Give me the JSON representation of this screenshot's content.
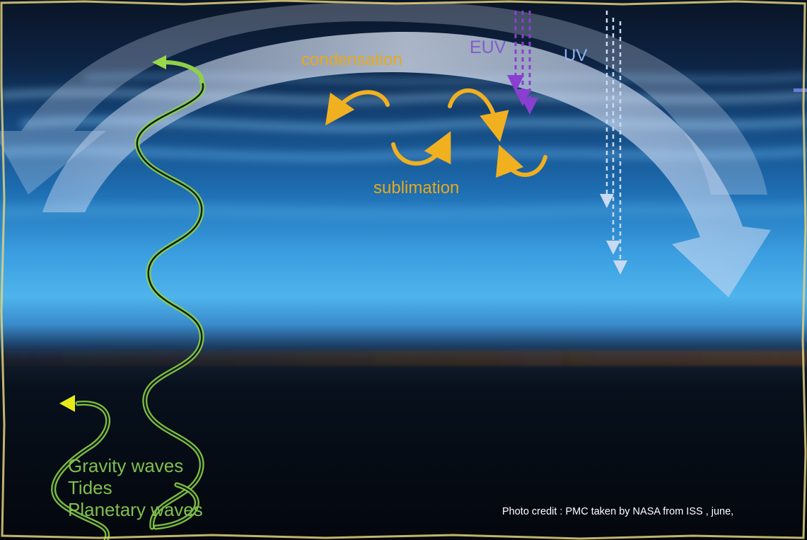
{
  "labels": {
    "condensation": "condensation",
    "sublimation": "sublimation",
    "euv": "EUV",
    "uv": "UV"
  },
  "waves": [
    "Gravity waves",
    "Tides",
    "Planetary waves"
  ],
  "credit": "Photo credit : PMC taken by NASA from ISS , june,",
  "colors": {
    "phase_arrows": "#f0b020",
    "wave_lines": "#8fd04a",
    "euv_rays": "#8a3fd0",
    "uv_rays": "#c8daf2",
    "circulation_arrow": "#c9d7f0",
    "sky_top": "#0b1b33",
    "sky_glow": "#4fb4ec",
    "ground": "#05080e"
  }
}
